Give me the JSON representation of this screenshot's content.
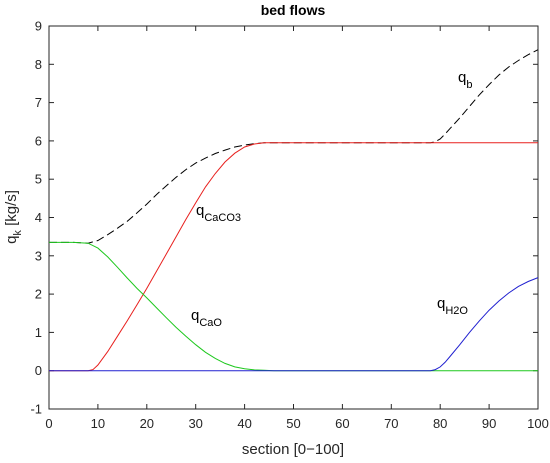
{
  "chart_data": {
    "type": "line",
    "title": "bed flows",
    "xlabel": "section [0−100]",
    "ylabel": {
      "main": "q",
      "sub": "k",
      "rest": " [kg/s]"
    },
    "xlim": [
      0,
      100
    ],
    "ylim": [
      -1,
      9
    ],
    "xticks": [
      "0",
      "10",
      "20",
      "30",
      "40",
      "50",
      "60",
      "70",
      "80",
      "90",
      "100"
    ],
    "yticks": [
      "-1",
      "0",
      "1",
      "2",
      "3",
      "4",
      "5",
      "6",
      "7",
      "8",
      "9"
    ],
    "grid": false,
    "legend": "none",
    "annotations": [
      {
        "main": "q",
        "sub": "b",
        "color": "#000000"
      },
      {
        "main": "q",
        "sub": "CaCO3",
        "color": "#e8201e"
      },
      {
        "main": "q",
        "sub": "CaO",
        "color": "#1ec81e"
      },
      {
        "main": "q",
        "sub": "H2O",
        "color": "#2020d0"
      }
    ],
    "series": [
      {
        "color": "#000000",
        "dash": true,
        "x": [
          0,
          5,
          8,
          10,
          12,
          14,
          16,
          18,
          20,
          22,
          24,
          26,
          28,
          30,
          32,
          34,
          36,
          38,
          40,
          42,
          44,
          46,
          48,
          50,
          60,
          70,
          78,
          79,
          80,
          81,
          82,
          84,
          86,
          88,
          90,
          92,
          94,
          96,
          98,
          100
        ],
        "y": [
          3.35,
          3.35,
          3.33,
          3.4,
          3.55,
          3.72,
          3.9,
          4.12,
          4.35,
          4.6,
          4.83,
          5.05,
          5.25,
          5.42,
          5.55,
          5.67,
          5.76,
          5.84,
          5.89,
          5.93,
          5.95,
          5.95,
          5.95,
          5.95,
          5.95,
          5.95,
          5.95,
          5.98,
          6.05,
          6.18,
          6.32,
          6.6,
          6.9,
          7.2,
          7.47,
          7.72,
          7.93,
          8.1,
          8.25,
          8.38
        ]
      },
      {
        "color": "#e8201e",
        "dash": false,
        "x": [
          0,
          8,
          9,
          10,
          12,
          14,
          16,
          18,
          20,
          22,
          24,
          26,
          28,
          30,
          32,
          34,
          36,
          38,
          40,
          42,
          44,
          45,
          100
        ],
        "y": [
          0,
          0,
          0.03,
          0.15,
          0.5,
          0.9,
          1.3,
          1.72,
          2.15,
          2.6,
          3.05,
          3.5,
          3.95,
          4.38,
          4.8,
          5.15,
          5.45,
          5.68,
          5.84,
          5.92,
          5.95,
          5.95,
          5.95
        ]
      },
      {
        "color": "#1ec81e",
        "dash": false,
        "x": [
          0,
          5,
          8,
          10,
          12,
          14,
          16,
          18,
          20,
          22,
          24,
          26,
          28,
          30,
          32,
          34,
          36,
          38,
          40,
          42,
          44,
          46,
          48,
          50,
          100
        ],
        "y": [
          3.35,
          3.35,
          3.33,
          3.2,
          2.97,
          2.7,
          2.42,
          2.15,
          1.9,
          1.64,
          1.38,
          1.13,
          0.9,
          0.68,
          0.48,
          0.32,
          0.19,
          0.1,
          0.05,
          0.02,
          0.01,
          0,
          0,
          0,
          0
        ]
      },
      {
        "color": "#2020d0",
        "dash": false,
        "x": [
          0,
          78,
          79,
          80,
          81,
          82,
          84,
          86,
          88,
          90,
          92,
          94,
          96,
          98,
          100
        ],
        "y": [
          0,
          0,
          0.03,
          0.1,
          0.22,
          0.37,
          0.68,
          1.0,
          1.3,
          1.58,
          1.82,
          2.03,
          2.2,
          2.33,
          2.43
        ]
      }
    ]
  }
}
